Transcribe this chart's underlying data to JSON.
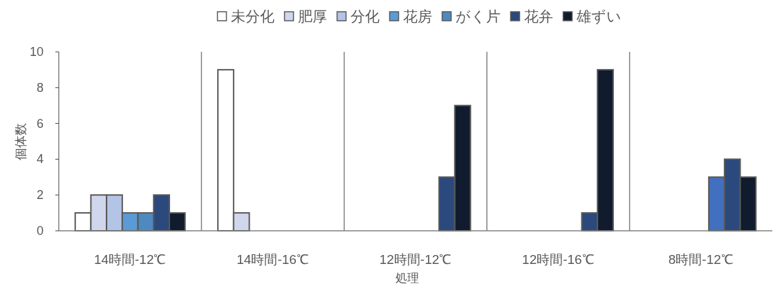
{
  "chart_data": {
    "type": "bar",
    "xlabel": "処理",
    "ylabel": "個体数",
    "categories": [
      "14時間-12℃",
      "14時間-16℃",
      "12時間-12℃",
      "12時間-16℃",
      "8時間-12℃"
    ],
    "series": [
      {
        "name": "未分化",
        "color": "#ffffff",
        "values": [
          1,
          9,
          null,
          null,
          null
        ]
      },
      {
        "name": "肥厚",
        "color": "#d0d6ec",
        "values": [
          2,
          1,
          null,
          null,
          null
        ]
      },
      {
        "name": "分化",
        "color": "#b4c4e7",
        "values": [
          2,
          null,
          null,
          null,
          null
        ]
      },
      {
        "name": "花房",
        "color": "#5b9bd5",
        "values": [
          1,
          null,
          null,
          null,
          null
        ]
      },
      {
        "name": "がく片",
        "color": "#4e8abf",
        "colors": [
          "#4e8abf",
          null,
          null,
          null,
          "#4270c0"
        ],
        "values": [
          1,
          null,
          null,
          null,
          3
        ]
      },
      {
        "name": "花弁",
        "color": "#2b497c",
        "values": [
          2,
          null,
          3,
          1,
          4
        ]
      },
      {
        "name": "雄ずい",
        "color": "#111b2e",
        "values": [
          1,
          null,
          7,
          9,
          3
        ]
      }
    ],
    "ylim": [
      0,
      10
    ],
    "yticks": [
      0,
      2,
      4,
      6,
      8,
      10
    ],
    "grid": false,
    "legend": "top"
  }
}
